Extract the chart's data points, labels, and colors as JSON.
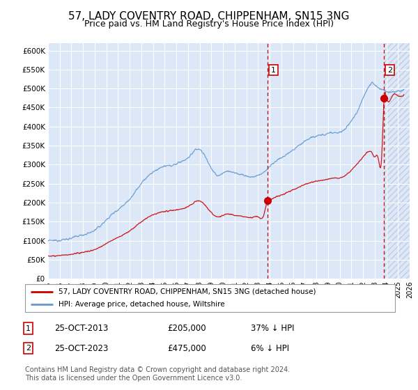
{
  "title": "57, LADY COVENTRY ROAD, CHIPPENHAM, SN15 3NG",
  "subtitle": "Price paid vs. HM Land Registry's House Price Index (HPI)",
  "yticks": [
    0,
    50000,
    100000,
    150000,
    200000,
    250000,
    300000,
    350000,
    400000,
    450000,
    500000,
    550000,
    600000
  ],
  "xlim_start": 1995.0,
  "xlim_end": 2026.0,
  "ylim_min": 0,
  "ylim_max": 620000,
  "sale1_x": 2013.81,
  "sale1_y": 205000,
  "sale2_x": 2023.81,
  "sale2_y": 475000,
  "sale1_label": "25-OCT-2013",
  "sale1_price": "£205,000",
  "sale1_hpi": "37% ↓ HPI",
  "sale2_label": "25-OCT-2023",
  "sale2_price": "£475,000",
  "sale2_hpi": "6% ↓ HPI",
  "legend_line1": "57, LADY COVENTRY ROAD, CHIPPENHAM, SN15 3NG (detached house)",
  "legend_line2": "HPI: Average price, detached house, Wiltshire",
  "footer": "Contains HM Land Registry data © Crown copyright and database right 2024.\nThis data is licensed under the Open Government Licence v3.0.",
  "line_red": "#cc0000",
  "line_blue": "#6699cc",
  "bg_plot": "#dce8f8",
  "grid_color": "#ffffff",
  "hatch_bg": "#c8d8ee",
  "title_fontsize": 11,
  "subtitle_fontsize": 9,
  "axis_fontsize": 7.5,
  "footer_fontsize": 7
}
